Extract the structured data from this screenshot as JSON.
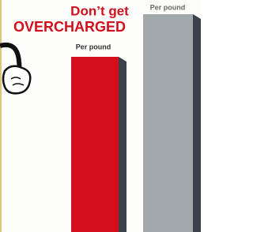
{
  "headline": {
    "line1": "Don’t get",
    "line2": "OVERCHARGED"
  },
  "bars": [
    {
      "label": "Per pound"
    },
    {
      "label": "Per pound"
    }
  ]
}
